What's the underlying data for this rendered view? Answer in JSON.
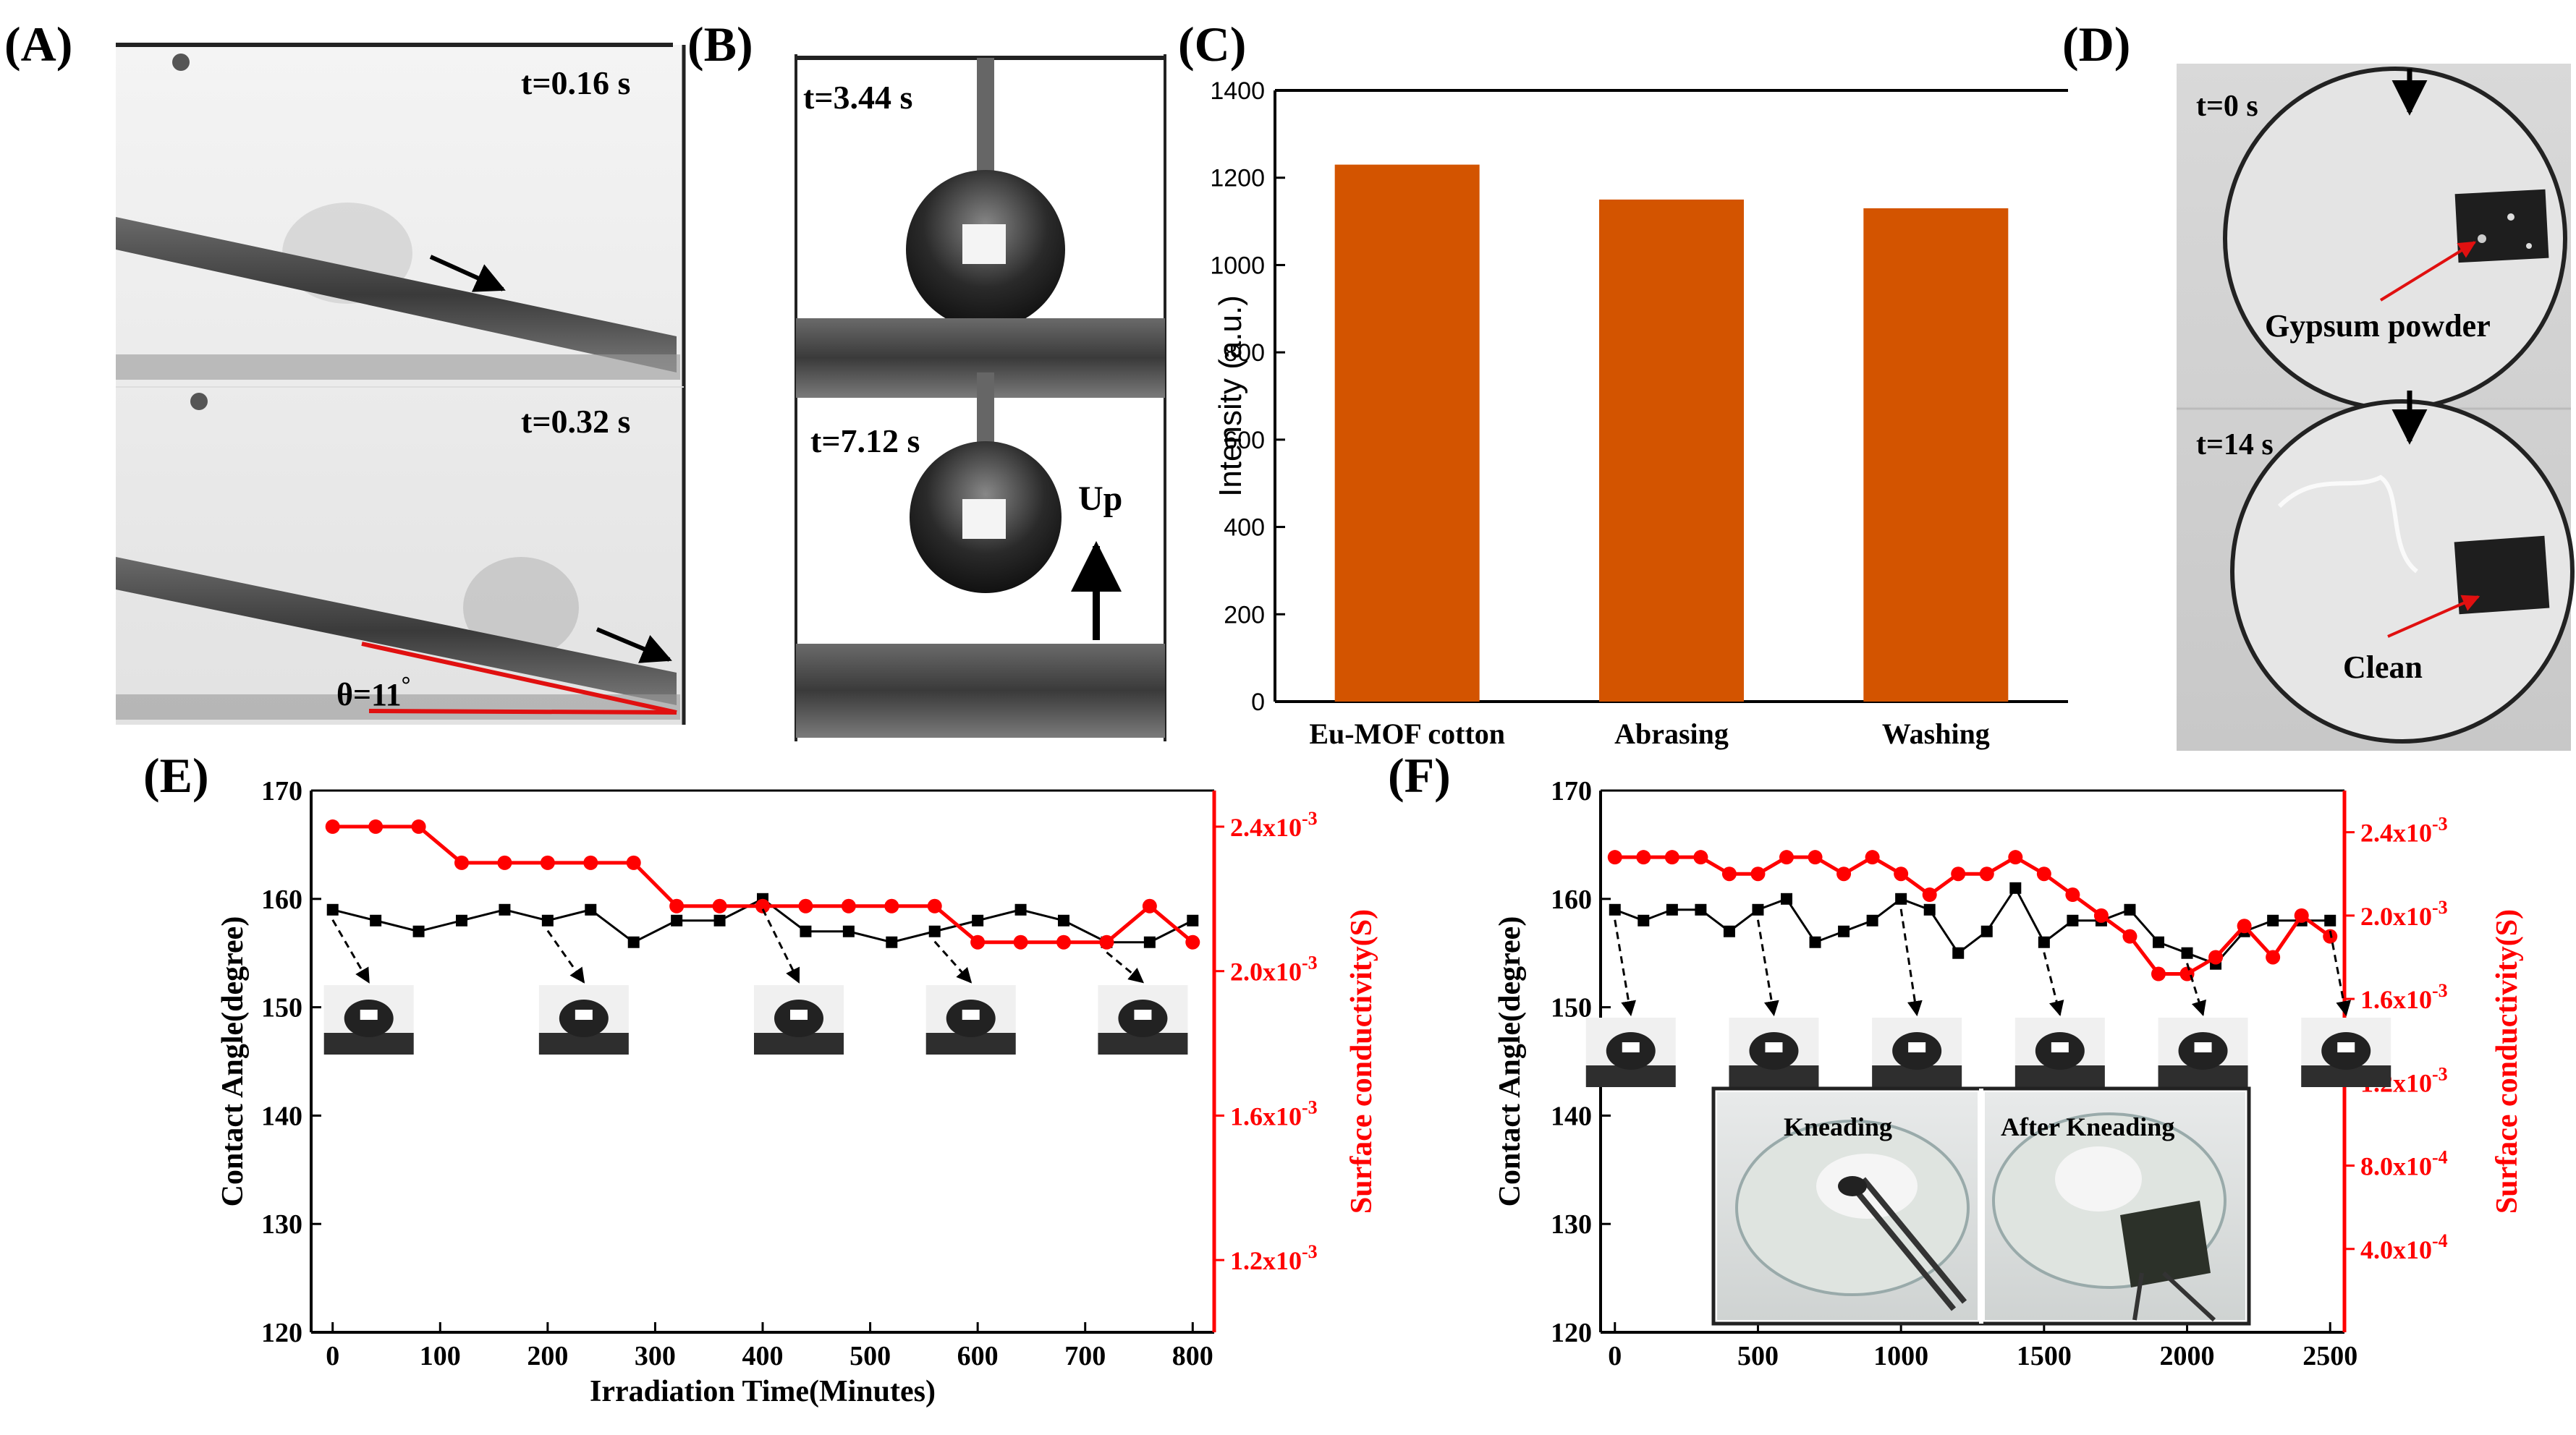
{
  "panel_labels": {
    "A": "(A)",
    "B": "(B)",
    "C": "(C)",
    "D": "(D)",
    "E": "(E)",
    "F": "(F)"
  },
  "panel_a": {
    "t1": "t=0.16 s",
    "t2": "t=0.32 s",
    "angle": "θ=11",
    "angle_unit": "°"
  },
  "panel_b": {
    "t1": "t=3.44 s",
    "t2": "t=7.12 s",
    "direction": "Up"
  },
  "panel_d": {
    "t1": "t=0 s",
    "t2": "t=14 s",
    "label1": "Gypsum powder",
    "label2": "Clean"
  },
  "inset_f": {
    "left_label": "Kneading",
    "right_label": "After Kneading"
  },
  "colors": {
    "bar": "#d35400",
    "red": "#ff0000",
    "black": "#000000"
  },
  "chart_data": [
    {
      "id": "C",
      "type": "bar",
      "categories": [
        "Eu-MOF cotton",
        "Abrasing",
        "Washing"
      ],
      "values": [
        1230,
        1150,
        1130
      ],
      "ylabel": "Intensity (a.u.)",
      "xlabel": "",
      "ylim": [
        0,
        1400
      ],
      "yticks": [
        0,
        200,
        400,
        600,
        800,
        1000,
        1200,
        1400
      ]
    },
    {
      "id": "E",
      "type": "line",
      "xlabel": "Irradiation Time(Minutes)",
      "ylabel": "Contact Angle(degree)",
      "y2label": "Surface conductivity(S)",
      "xlim": [
        -20,
        820
      ],
      "ylim": [
        120,
        170
      ],
      "y2lim": [
        0.001,
        0.0025
      ],
      "xticks": [
        0,
        100,
        200,
        300,
        400,
        500,
        600,
        700,
        800
      ],
      "yticks": [
        120,
        130,
        140,
        150,
        160,
        170
      ],
      "y2ticks": [
        0.0012,
        0.0016,
        0.002,
        0.0024
      ],
      "y2ticklabels": [
        "1.2x10-3",
        "1.6x10-3",
        "2.0x10-3",
        "2.4x10-3"
      ],
      "series": [
        {
          "name": "Contact Angle",
          "axis": "left",
          "color": "#000000",
          "marker": "square",
          "x": [
            0,
            40,
            80,
            120,
            160,
            200,
            240,
            280,
            320,
            360,
            400,
            440,
            480,
            520,
            560,
            600,
            640,
            680,
            720,
            760,
            800
          ],
          "y": [
            159,
            158,
            157,
            158,
            159,
            158,
            159,
            156,
            158,
            158,
            160,
            157,
            157,
            156,
            157,
            158,
            159,
            158,
            156,
            156,
            158
          ]
        },
        {
          "name": "Surface conductivity",
          "axis": "right",
          "color": "#ff0000",
          "marker": "circle",
          "x": [
            0,
            40,
            80,
            120,
            160,
            200,
            240,
            280,
            320,
            360,
            400,
            440,
            480,
            520,
            560,
            600,
            640,
            680,
            720,
            760,
            800
          ],
          "y": [
            0.0024,
            0.0024,
            0.0024,
            0.0023,
            0.0023,
            0.0023,
            0.0023,
            0.0023,
            0.00218,
            0.00218,
            0.00218,
            0.00218,
            0.00218,
            0.00218,
            0.00218,
            0.00208,
            0.00208,
            0.00208,
            0.00208,
            0.00218,
            0.00208
          ]
        }
      ]
    },
    {
      "id": "F",
      "type": "line",
      "xlabel": "",
      "ylabel": "Contact Angle(degree)",
      "y2label": "Surface conductivity(S)",
      "xlim": [
        -50,
        2550
      ],
      "ylim": [
        120,
        170
      ],
      "y2lim": [
        0,
        0.0026
      ],
      "xticks": [
        0,
        500,
        1000,
        1500,
        2000,
        2500
      ],
      "yticks": [
        120,
        130,
        140,
        150,
        160,
        170
      ],
      "y2ticks": [
        0.0004,
        0.0008,
        0.0012,
        0.0016,
        0.002,
        0.0024
      ],
      "y2ticklabels": [
        "4.0x10-4",
        "8.0x10-4",
        "1.2x10-3",
        "1.6x10-3",
        "2.0x10-3",
        "2.4x10-3"
      ],
      "series": [
        {
          "name": "Contact Angle",
          "axis": "left",
          "color": "#000000",
          "marker": "square",
          "x": [
            0,
            100,
            200,
            300,
            400,
            500,
            600,
            700,
            800,
            900,
            1000,
            1100,
            1200,
            1300,
            1400,
            1500,
            1600,
            1700,
            1800,
            1900,
            2000,
            2100,
            2200,
            2300,
            2400,
            2500
          ],
          "y": [
            159,
            158,
            159,
            159,
            157,
            159,
            160,
            156,
            157,
            158,
            160,
            159,
            155,
            157,
            161,
            156,
            158,
            158,
            159,
            156,
            155,
            154,
            157,
            158,
            158,
            158
          ]
        },
        {
          "name": "Surface conductivity",
          "axis": "right",
          "color": "#ff0000",
          "marker": "circle",
          "x": [
            0,
            100,
            200,
            300,
            400,
            500,
            600,
            700,
            800,
            900,
            1000,
            1100,
            1200,
            1300,
            1400,
            1500,
            1600,
            1700,
            1800,
            1900,
            2000,
            2100,
            2200,
            2300,
            2400,
            2500
          ],
          "y": [
            0.00228,
            0.00228,
            0.00228,
            0.00228,
            0.0022,
            0.0022,
            0.00228,
            0.00228,
            0.0022,
            0.00228,
            0.0022,
            0.0021,
            0.0022,
            0.0022,
            0.00228,
            0.0022,
            0.0021,
            0.002,
            0.0019,
            0.00172,
            0.00172,
            0.0018,
            0.00195,
            0.0018,
            0.002,
            0.0019
          ]
        }
      ]
    }
  ]
}
